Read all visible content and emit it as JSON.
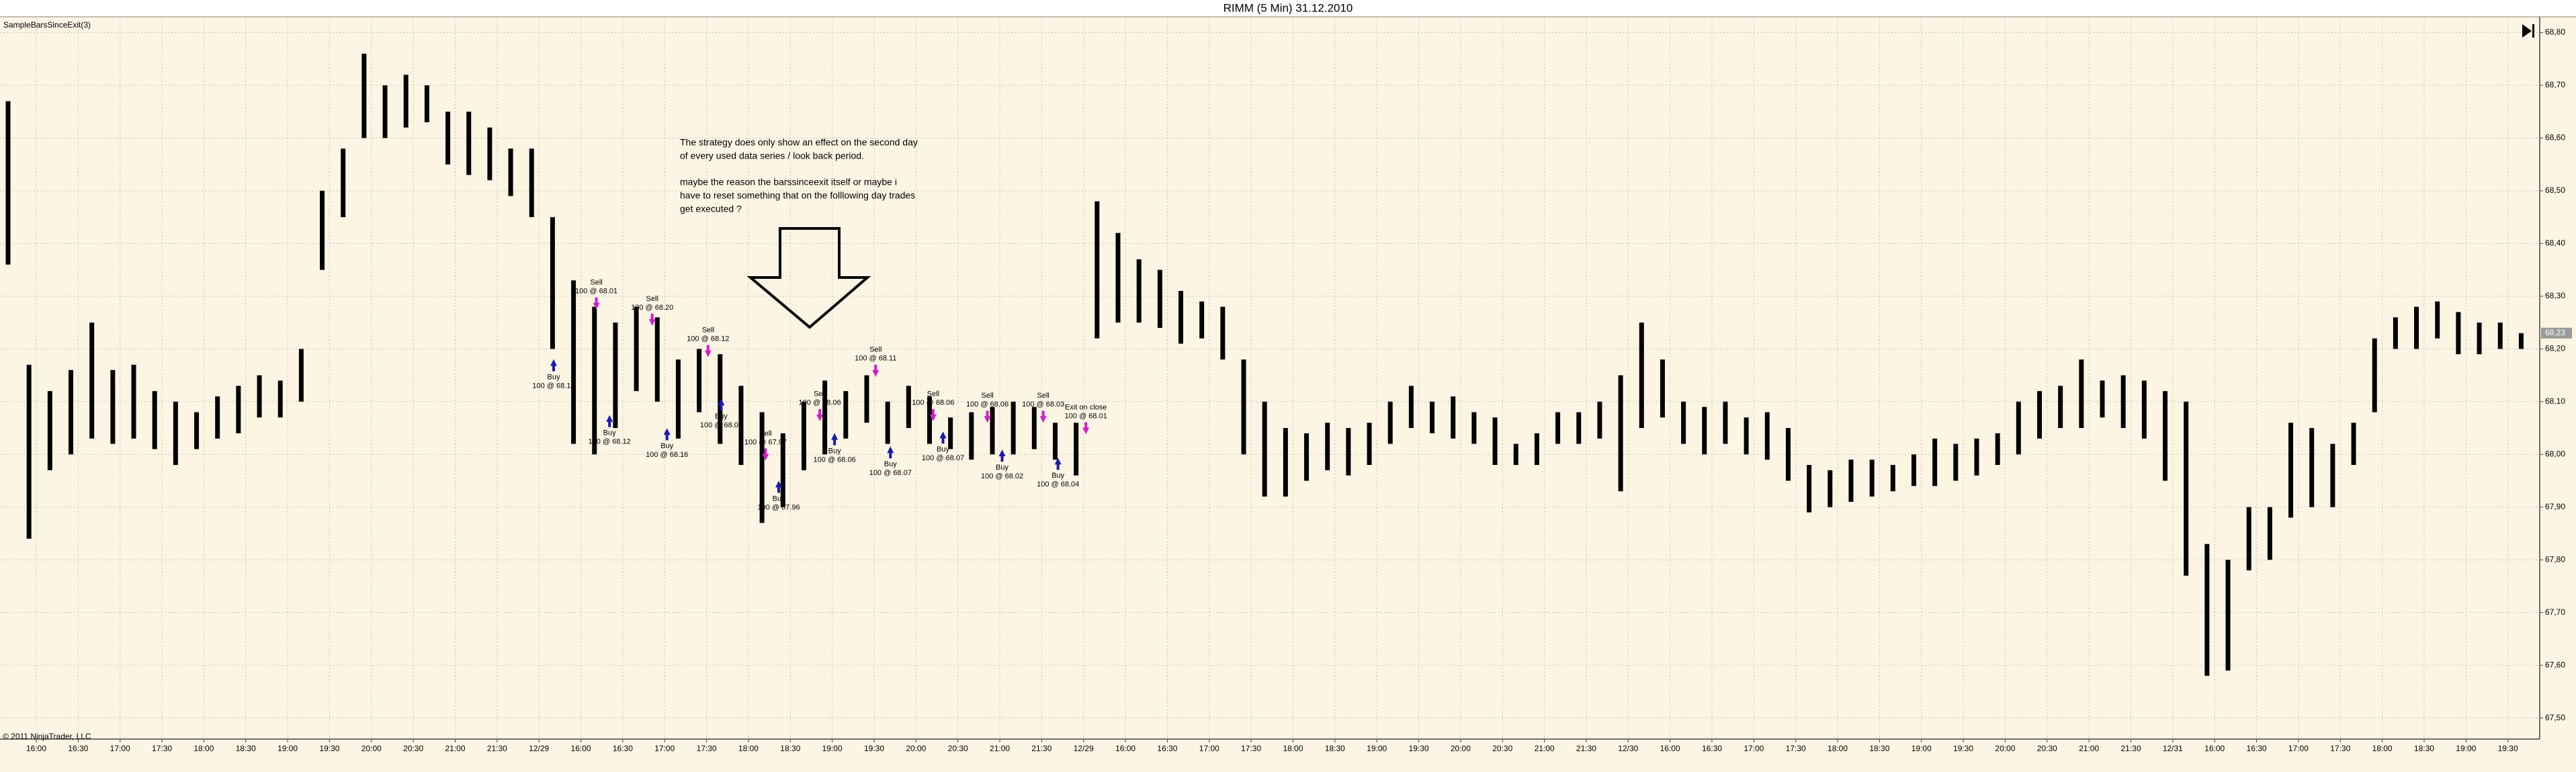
{
  "chart_data": {
    "type": "range_bar",
    "title": "RIMM (5 Min)  31.12.2010",
    "indicator": "SampleBarsSinceExit(3)",
    "copyright": "© 2011 NinjaTrader, LLC",
    "color": "#000000",
    "background": "#fdf5e4",
    "grid": true,
    "ylim": [
      67.46,
      68.83
    ],
    "yticks": [
      {
        "value": 67.5,
        "label": "67,50"
      },
      {
        "value": 67.6,
        "label": "67,60"
      },
      {
        "value": 67.7,
        "label": "67,70"
      },
      {
        "value": 67.8,
        "label": "67,80"
      },
      {
        "value": 67.9,
        "label": "67,90"
      },
      {
        "value": 68.0,
        "label": "68,00"
      },
      {
        "value": 68.1,
        "label": "68,10"
      },
      {
        "value": 68.2,
        "label": "68,20"
      },
      {
        "value": 68.3,
        "label": "68,30"
      },
      {
        "value": 68.4,
        "label": "68,40"
      },
      {
        "value": 68.5,
        "label": "68,50"
      },
      {
        "value": 68.6,
        "label": "68,60"
      },
      {
        "value": 68.7,
        "label": "68,70"
      },
      {
        "value": 68.8,
        "label": "68,80"
      }
    ],
    "last_price": {
      "value": 68.23,
      "label": "68,23"
    },
    "x_labels": [
      "16:00",
      "16:30",
      "17:00",
      "17:30",
      "18:00",
      "18:30",
      "19:00",
      "19:30",
      "20:00",
      "20:30",
      "21:00",
      "21:30",
      "12/29",
      "16:00",
      "16:30",
      "17:00",
      "17:30",
      "18:00",
      "18:30",
      "19:00",
      "19:30",
      "20:00",
      "20:30",
      "21:00",
      "21:30",
      "12/29",
      "16:00",
      "16:30",
      "17:00",
      "17:30",
      "18:00",
      "18:30",
      "19:00",
      "19:30",
      "20:00",
      "20:30",
      "21:00",
      "21:30",
      "12/30",
      "16:00",
      "16:30",
      "17:00",
      "17:30",
      "18:00",
      "18:30",
      "19:00",
      "19:30",
      "20:00",
      "20:30",
      "21:00",
      "21:30",
      "12/31",
      "16:00",
      "16:30",
      "17:00",
      "17:30",
      "18:00",
      "18:30",
      "19:00",
      "19:30"
    ],
    "high": [
      68.67,
      68.17,
      68.12,
      68.16,
      68.25,
      68.16,
      68.17,
      68.12,
      68.1,
      68.08,
      68.11,
      68.13,
      68.15,
      68.14,
      68.2,
      68.5,
      68.58,
      68.76,
      68.7,
      68.72,
      68.7,
      68.65,
      68.65,
      68.62,
      68.58,
      68.58,
      68.45,
      68.33,
      68.28,
      68.25,
      68.28,
      68.26,
      68.18,
      68.2,
      68.19,
      68.13,
      68.08,
      68.04,
      68.1,
      68.14,
      68.12,
      68.15,
      68.1,
      68.13,
      68.11,
      68.07,
      68.08,
      68.09,
      68.1,
      68.09,
      68.06,
      68.06,
      68.48,
      68.42,
      68.37,
      68.35,
      68.31,
      68.29,
      68.28,
      68.18,
      68.1,
      68.05,
      68.04,
      68.06,
      68.05,
      68.06,
      68.1,
      68.13,
      68.1,
      68.11,
      68.08,
      68.07,
      68.02,
      68.04,
      68.08,
      68.08,
      68.1,
      68.15,
      68.25,
      68.18,
      68.1,
      68.09,
      68.1,
      68.07,
      68.08,
      68.05,
      67.98,
      67.97,
      67.99,
      67.99,
      67.98,
      68.0,
      68.03,
      68.02,
      68.03,
      68.04,
      68.1,
      68.12,
      68.13,
      68.18,
      68.14,
      68.15,
      68.14,
      68.12,
      68.1,
      67.83,
      67.8,
      67.9,
      67.9,
      68.06,
      68.05,
      68.02,
      68.06,
      68.22,
      68.26,
      68.28,
      68.29,
      68.27,
      68.25,
      68.25,
      68.23
    ],
    "low": [
      68.36,
      67.84,
      67.97,
      68.0,
      68.03,
      68.02,
      68.03,
      68.01,
      67.98,
      68.01,
      68.03,
      68.04,
      68.07,
      68.07,
      68.1,
      68.35,
      68.45,
      68.6,
      68.6,
      68.62,
      68.63,
      68.55,
      68.53,
      68.52,
      68.49,
      68.45,
      68.2,
      68.02,
      68.0,
      68.05,
      68.12,
      68.1,
      68.03,
      68.08,
      68.02,
      67.98,
      67.87,
      67.9,
      67.97,
      68.0,
      68.03,
      68.06,
      68.02,
      68.05,
      68.02,
      68.01,
      67.99,
      68.0,
      68.0,
      68.01,
      67.99,
      67.96,
      68.22,
      68.25,
      68.25,
      68.24,
      68.21,
      68.22,
      68.18,
      68.0,
      67.92,
      67.92,
      67.95,
      67.97,
      67.96,
      67.98,
      68.02,
      68.05,
      68.04,
      68.03,
      68.02,
      67.98,
      67.98,
      67.98,
      68.02,
      68.02,
      68.03,
      67.93,
      68.05,
      68.07,
      68.02,
      68.0,
      68.02,
      68.0,
      67.99,
      67.95,
      67.89,
      67.9,
      67.91,
      67.92,
      67.93,
      67.94,
      67.94,
      67.95,
      67.96,
      67.98,
      68.0,
      68.03,
      68.05,
      68.05,
      68.07,
      68.05,
      68.03,
      67.95,
      67.77,
      67.58,
      67.59,
      67.78,
      67.8,
      67.88,
      67.9,
      67.9,
      67.98,
      68.08,
      68.2,
      68.2,
      68.22,
      68.19,
      68.19,
      68.2,
      68.2
    ],
    "trades": [
      {
        "label": "Buy",
        "detail": "100 @ 68.13"
      },
      {
        "label": "Sell",
        "detail": "100 @ 68.01"
      },
      {
        "label": "Buy",
        "detail": "100 @ 68.12"
      },
      {
        "label": "Sell",
        "detail": "100 @ 68.20"
      },
      {
        "label": "Buy",
        "detail": "100 @ 68.16"
      },
      {
        "label": "Sell",
        "detail": "100 @ 68.12"
      },
      {
        "label": "Buy",
        "detail": "100 @ 68.09"
      },
      {
        "label": "Sell",
        "detail": "100 @ 67.97"
      },
      {
        "label": "Buy",
        "detail": "100 @ 67.96"
      },
      {
        "label": "Sell",
        "detail": "100 @ 68.06"
      },
      {
        "label": "Buy",
        "detail": "100 @ 68.06"
      },
      {
        "label": "Sell",
        "detail": "100 @ 68.11"
      },
      {
        "label": "Buy",
        "detail": "100 @ 68.07"
      },
      {
        "label": "Sell",
        "detail": "100 @ 68.06"
      },
      {
        "label": "Buy",
        "detail": "100 @ 68.07"
      },
      {
        "label": "Sell",
        "detail": "100 @ 68.06"
      },
      {
        "label": "Buy",
        "detail": "100 @ 68.02"
      },
      {
        "label": "Sell",
        "detail": "100 @ 68.03"
      },
      {
        "label": "Buy",
        "detail": "100 @ 68.04"
      },
      {
        "label": "Exit on close",
        "detail": "100 @ 68.01"
      }
    ],
    "note": [
      "The strategy does only show an effect on the second day",
      "of every used data series / look back period.",
      "maybe the reason the barssinceexit itself or maybe i",
      "have to reset something that on the folllowing day trades",
      "get executed ?"
    ]
  }
}
